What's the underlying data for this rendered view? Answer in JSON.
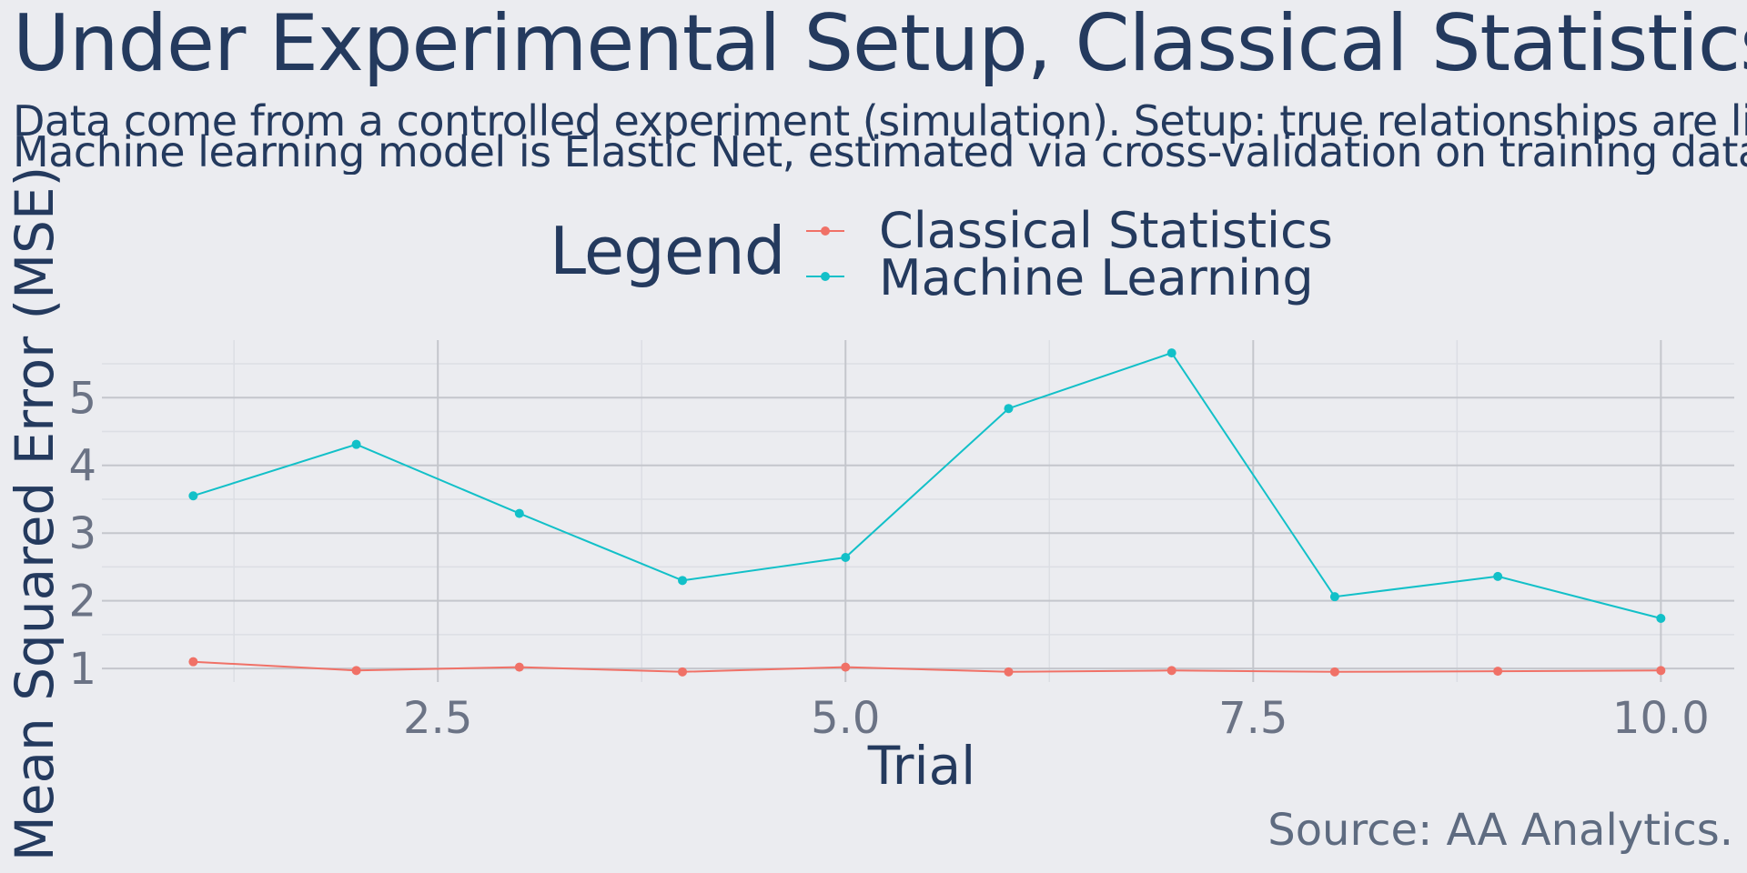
{
  "title": "Under Experimental Setup, Classical Statistics Dom",
  "subtitle_lines": [
    "Data come from a controlled experiment (simulation). Setup: true relationships are lin",
    "Machine learning model is Elastic Net, estimated via cross-validation on training data a"
  ],
  "legend": {
    "title": "Legend",
    "items": [
      {
        "label": "Classical Statistics",
        "color": "#f07167"
      },
      {
        "label": "Machine Learning",
        "color": "#12c0c8"
      }
    ]
  },
  "source": "Source: AA Analytics.",
  "chart_data": {
    "type": "line",
    "xlabel": "Trial",
    "ylabel": "Mean Squared Error (MSE)",
    "x": [
      1,
      2,
      3,
      4,
      5,
      6,
      7,
      8,
      9,
      10
    ],
    "x_ticks": [
      2.5,
      5.0,
      7.5,
      10.0
    ],
    "x_tick_labels": [
      "2.5",
      "5.0",
      "7.5",
      "10.0"
    ],
    "y_ticks": [
      1,
      2,
      3,
      4,
      5
    ],
    "y_tick_labels": [
      "1",
      "2",
      "3",
      "4",
      "5"
    ],
    "xlim": [
      0.44,
      10.45
    ],
    "ylim": [
      0.8,
      5.85
    ],
    "grid": true,
    "legend_position": "top",
    "series": [
      {
        "name": "Classical Statistics",
        "color": "#f07167",
        "values": [
          1.1,
          0.97,
          1.02,
          0.95,
          1.02,
          0.95,
          0.97,
          0.95,
          0.96,
          0.97
        ]
      },
      {
        "name": "Machine Learning",
        "color": "#12c0c8",
        "values": [
          3.55,
          4.31,
          3.29,
          2.3,
          2.64,
          4.84,
          5.66,
          2.06,
          2.36,
          1.74
        ]
      }
    ]
  }
}
